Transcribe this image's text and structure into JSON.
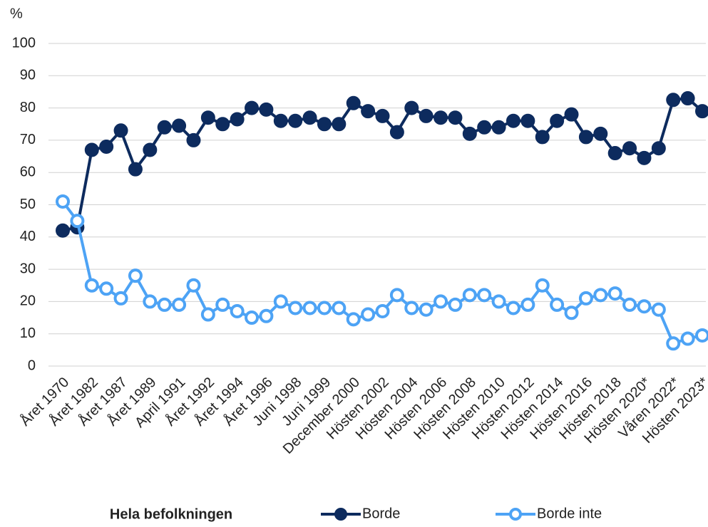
{
  "chart_data": {
    "type": "line",
    "y_axis_label": "%",
    "legend_title": "Hela befolkningen",
    "categories": [
      "Året 1970",
      null,
      "Året 1982",
      null,
      "Året 1987",
      null,
      "Året 1989",
      null,
      "April 1991",
      null,
      "Året 1992",
      null,
      "Året 1994",
      null,
      "Året 1996",
      null,
      "Juni 1998",
      null,
      "Juni 1999",
      null,
      "December 2000",
      null,
      "Hösten 2002",
      null,
      "Hösten 2004",
      null,
      "Hösten 2006",
      null,
      "Hösten 2008",
      null,
      "Hösten 2010",
      null,
      "Hösten 2012",
      null,
      "Hösten 2014",
      null,
      "Hösten 2016",
      null,
      "Hösten 2018",
      null,
      "Hösten 2020*",
      null,
      "Våren 2022*",
      null,
      "Hösten 2023*"
    ],
    "series": [
      {
        "name": "Borde",
        "color": "#0d2b5e",
        "hollow": false,
        "values": [
          42,
          43,
          67,
          68,
          73,
          61,
          67,
          74,
          74.5,
          70,
          77,
          75,
          76.5,
          80,
          79.5,
          76,
          76,
          77,
          75,
          75,
          81.5,
          79,
          77.5,
          72.5,
          80,
          77.5,
          77,
          77,
          72,
          74,
          74,
          76,
          76,
          71,
          76,
          78,
          71,
          72,
          66,
          67.5,
          64.5,
          67.5,
          82.5,
          83,
          79
        ]
      },
      {
        "name": "Borde inte",
        "color": "#4da3f5",
        "hollow": true,
        "values": [
          51,
          45,
          25,
          24,
          21,
          28,
          20,
          19,
          19,
          25,
          16,
          19,
          17,
          15,
          15.5,
          20,
          18,
          18,
          18,
          18,
          14.5,
          16,
          17,
          22,
          18,
          17.5,
          20,
          19,
          22,
          22,
          20,
          18,
          19,
          25,
          19,
          16.5,
          21,
          22,
          22.5,
          19,
          18.5,
          17.5,
          7,
          8.5,
          9.5
        ]
      }
    ],
    "ylim": [
      0,
      100
    ],
    "yticks": [
      0,
      10,
      20,
      30,
      40,
      50,
      60,
      70,
      80,
      90,
      100
    ],
    "grid": true
  }
}
